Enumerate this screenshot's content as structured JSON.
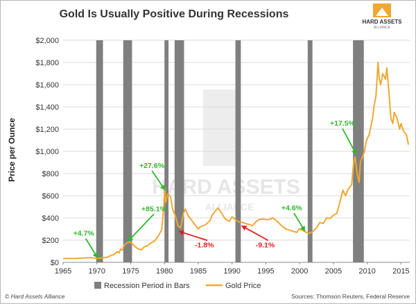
{
  "colors": {
    "gold": "#f0a830",
    "recession": "#7f7f7f",
    "gain": "#2eb82e",
    "loss": "#e02020",
    "grid": "#d9d9d9",
    "watermark": "#e6e6e6"
  },
  "brand": {
    "name": "HARD ASSETS",
    "sub": "ALLIANCE",
    "watermark_main": "HARD ASSETS",
    "watermark_sub": "ALLIANCE"
  },
  "footer": {
    "copyright": "© Hard Assets Alliance",
    "sources": "Sources: Thomson Reuters, Federal Reserve"
  },
  "chart_data": {
    "type": "line",
    "title": "Gold Is Usually Positive During Recessions",
    "ylabel": "Price per Ounce",
    "xlabel": "",
    "xlim": [
      1965,
      2016.3
    ],
    "ylim": [
      0,
      2000
    ],
    "grid": "horizontal",
    "legend_position": "bottom",
    "y_ticks": [
      "$0",
      "$200",
      "$400",
      "$600",
      "$800",
      "$1,000",
      "$1,200",
      "$1,400",
      "$1,600",
      "$1,800",
      "$2,000"
    ],
    "x_ticks": [
      "1965",
      "1970",
      "1975",
      "1980",
      "1985",
      "1990",
      "1995",
      "2000",
      "2005",
      "2010",
      "2015"
    ],
    "legend": {
      "recession": "Recession Period in Bars",
      "gold": "Gold Price"
    },
    "recessions": [
      {
        "start": 1969.9,
        "end": 1970.9
      },
      {
        "start": 1973.9,
        "end": 1975.2
      },
      {
        "start": 1980.0,
        "end": 1980.6
      },
      {
        "start": 1981.5,
        "end": 1982.9
      },
      {
        "start": 1990.5,
        "end": 1991.3
      },
      {
        "start": 2001.2,
        "end": 2001.9
      },
      {
        "start": 2007.9,
        "end": 2009.5
      }
    ],
    "annotations": [
      {
        "text": "+4.7%",
        "kind": "gain",
        "label_x": 1966.5,
        "label_y": 240,
        "point_x": 1970.1,
        "point_y": 40
      },
      {
        "text": "+85.1%",
        "kind": "gain",
        "label_x": 1976.6,
        "label_y": 460,
        "point_x": 1974.6,
        "point_y": 190
      },
      {
        "text": "+27.6%",
        "kind": "gain",
        "label_x": 1976.3,
        "label_y": 850,
        "point_x": 1980.1,
        "point_y": 650
      },
      {
        "text": "-1.8%",
        "kind": "loss",
        "label_x": 1984.5,
        "label_y": 135,
        "point_x": 1982.1,
        "point_y": 280
      },
      {
        "text": "-9.1%",
        "kind": "loss",
        "label_x": 1993.5,
        "label_y": 135,
        "point_x": 1991.4,
        "point_y": 330
      },
      {
        "text": "+4.6%",
        "kind": "gain",
        "label_x": 1997.3,
        "label_y": 470,
        "point_x": 2000.8,
        "point_y": 280
      },
      {
        "text": "+17.5%",
        "kind": "gain",
        "label_x": 2004.5,
        "label_y": 1230,
        "point_x": 2008.4,
        "point_y": 970
      }
    ],
    "series": [
      {
        "name": "Gold Price",
        "x": [
          1965,
          1967,
          1968,
          1969,
          1969.5,
          1970,
          1970.5,
          1971,
          1971.5,
          1972,
          1972.5,
          1973,
          1973.3,
          1973.5,
          1973.8,
          1974,
          1974.4,
          1974.9,
          1975.2,
          1975.6,
          1976,
          1976.6,
          1977,
          1977.5,
          1978,
          1978.5,
          1979,
          1979.3,
          1979.6,
          1979.9,
          1980.05,
          1980.2,
          1980.5,
          1980.9,
          1981.2,
          1981.6,
          1982,
          1982.4,
          1982.8,
          1983.1,
          1983.5,
          1984,
          1984.5,
          1985,
          1985.3,
          1985.8,
          1986.2,
          1986.8,
          1987,
          1987.5,
          1987.9,
          1988.5,
          1989,
          1989.6,
          1990,
          1990.6,
          1991,
          1991.5,
          1992,
          1992.6,
          1993,
          1993.6,
          1994,
          1994.5,
          1995,
          1995.5,
          1996,
          1996.5,
          1997,
          1997.5,
          1998,
          1998.5,
          1999,
          1999.6,
          1999.9,
          2000.4,
          2001,
          2001.4,
          2001.9,
          2002.5,
          2003,
          2003.5,
          2004,
          2004.5,
          2005,
          2005.5,
          2006,
          2006.4,
          2006.8,
          2007.2,
          2007.7,
          2008,
          2008.2,
          2008.5,
          2008.8,
          2009,
          2009.3,
          2009.6,
          2009.9,
          2010.3,
          2010.8,
          2011,
          2011.3,
          2011.6,
          2011.8,
          2012,
          2012.3,
          2012.7,
          2012.9,
          2013.2,
          2013.5,
          2013.8,
          2014,
          2014.4,
          2014.8,
          2015,
          2015.4,
          2015.8,
          2016.1
        ],
        "y": [
          35,
          35,
          39,
          42,
          40,
          36,
          38,
          42,
          45,
          60,
          70,
          95,
          85,
          120,
          110,
          150,
          175,
          185,
          170,
          145,
          125,
          112,
          140,
          150,
          175,
          190,
          230,
          260,
          300,
          500,
          670,
          540,
          620,
          590,
          480,
          420,
          330,
          310,
          440,
          480,
          420,
          380,
          340,
          300,
          320,
          330,
          345,
          380,
          420,
          460,
          490,
          440,
          390,
          370,
          410,
          380,
          365,
          360,
          350,
          340,
          330,
          370,
          385,
          390,
          385,
          385,
          400,
          380,
          350,
          320,
          300,
          290,
          280,
          270,
          300,
          290,
          270,
          260,
          275,
          310,
          360,
          350,
          400,
          395,
          425,
          440,
          550,
          650,
          600,
          660,
          700,
          900,
          950,
          800,
          720,
          900,
          950,
          1000,
          1100,
          1150,
          1300,
          1400,
          1500,
          1800,
          1650,
          1600,
          1700,
          1650,
          1750,
          1550,
          1300,
          1250,
          1350,
          1300,
          1200,
          1250,
          1180,
          1150,
          1060
        ]
      }
    ]
  }
}
